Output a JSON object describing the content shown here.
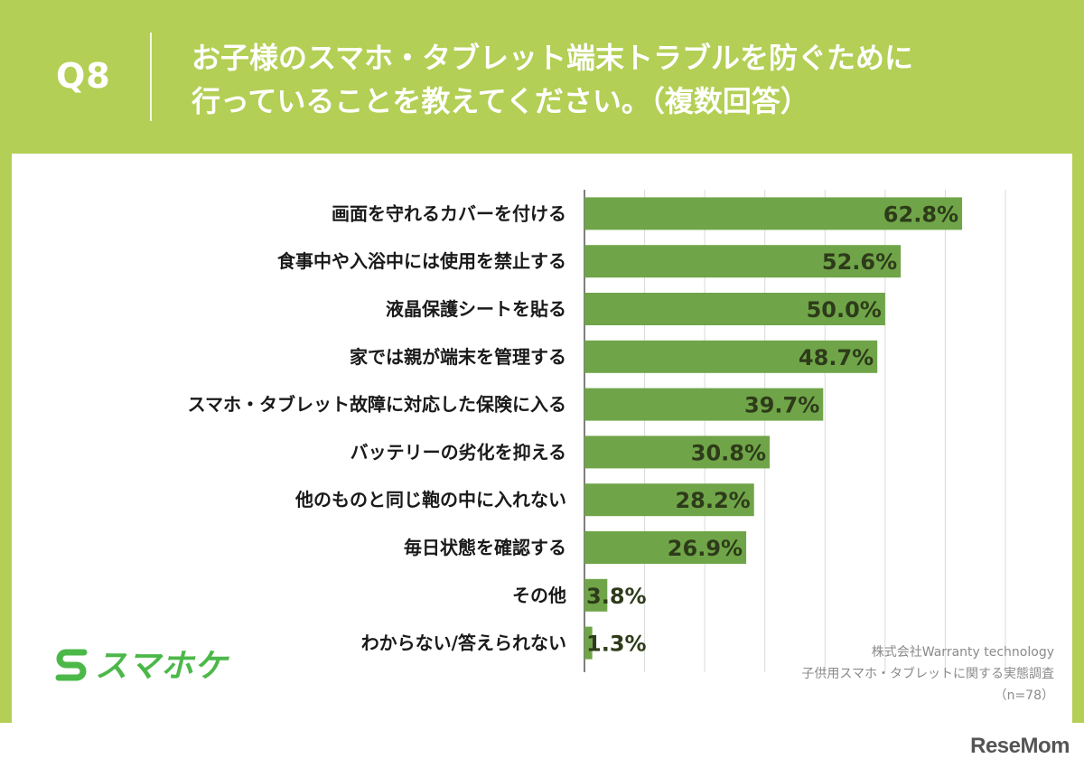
{
  "header": {
    "question_label": "Q8",
    "title_line1": "お子様のスマホ・タブレット端末トラブルを防ぐために",
    "title_line2": "行っていることを教えてください。（複数回答）"
  },
  "chart_data": {
    "type": "bar",
    "orientation": "horizontal",
    "categories": [
      "画面を守れるカバーを付ける",
      "食事中や入浴中には使用を禁止する",
      "液晶保護シートを貼る",
      "家では親が端末を管理する",
      "スマホ・タブレット故障に対応した保険に入る",
      "バッテリーの劣化を抑える",
      "他のものと同じ鞄の中に入れない",
      "毎日状態を確認する",
      "その他",
      "わからない/答えられない"
    ],
    "values": [
      62.8,
      52.6,
      50.0,
      48.7,
      39.7,
      30.8,
      28.2,
      26.9,
      3.8,
      1.3
    ],
    "value_labels": [
      "62.8%",
      "52.6%",
      "50.0%",
      "48.7%",
      "39.7%",
      "30.8%",
      "28.2%",
      "26.9%",
      "3.8%",
      "1.3%"
    ],
    "xlim": [
      0,
      70
    ],
    "grid": true,
    "bar_color": "#6fa548",
    "title": "",
    "xlabel": "",
    "ylabel": ""
  },
  "logo": {
    "text": "スマホケ"
  },
  "source": {
    "line1": "株式会社Warranty technology",
    "line2": "子供用スマホ・タブレットに関する実態調査",
    "line3": "（n=78）"
  },
  "watermark": {
    "text": "ReseMom"
  },
  "colors": {
    "background": "#b3cf55",
    "bar": "#6fa548",
    "logo": "#4cb849"
  }
}
